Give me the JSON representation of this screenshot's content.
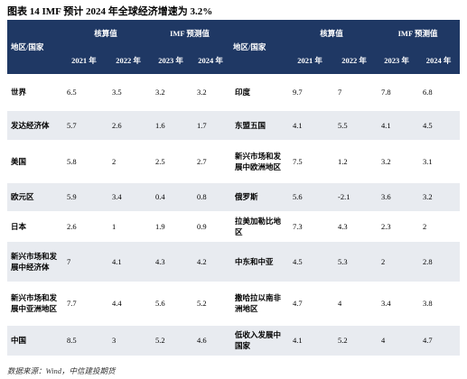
{
  "title": "图表 14 IMF 预计 2024 年全球经济增速为 3.2%",
  "table": {
    "groups": [
      "地区/国家",
      "核算值",
      "IMF 预测值",
      "地区/国家",
      "核算值",
      "IMF 预测值"
    ],
    "years": [
      "2021 年",
      "2022 年",
      "2023 年",
      "2024 年",
      "2021 年",
      "2022 年",
      "2023 年",
      "2024 年"
    ],
    "rows": [
      [
        "世界",
        6.5,
        3.5,
        3.2,
        3.2,
        "印度",
        9.7,
        7,
        7.8,
        6.8
      ],
      [
        "发达经济体",
        5.7,
        2.6,
        1.6,
        1.7,
        "东盟五国",
        4.1,
        5.5,
        4.1,
        4.5
      ],
      [
        "美国",
        5.8,
        2,
        2.5,
        2.7,
        "新兴市场和发展中欧洲地区",
        7.5,
        1.2,
        3.2,
        3.1
      ],
      [
        "欧元区",
        5.9,
        3.4,
        0.4,
        0.8,
        "俄罗斯",
        5.6,
        -2.1,
        3.6,
        3.2
      ],
      [
        "日本",
        2.6,
        1,
        1.9,
        0.9,
        "拉美加勒比地区",
        7.3,
        4.3,
        2.3,
        2
      ],
      [
        "新兴市场和发展中经济体",
        7,
        4.1,
        4.3,
        4.2,
        "中东和中亚",
        4.5,
        5.3,
        2,
        2.8
      ],
      [
        "新兴市场和发展中亚洲地区",
        7.7,
        4.4,
        5.6,
        5.2,
        "撒哈拉以南非洲地区",
        4.7,
        4,
        3.4,
        3.8
      ],
      [
        "中国",
        8.5,
        3,
        5.2,
        4.6,
        "低收入发展中国家",
        4.1,
        5.2,
        4,
        4.7
      ]
    ]
  },
  "source": "数据来源：Wind，中信建投期货"
}
